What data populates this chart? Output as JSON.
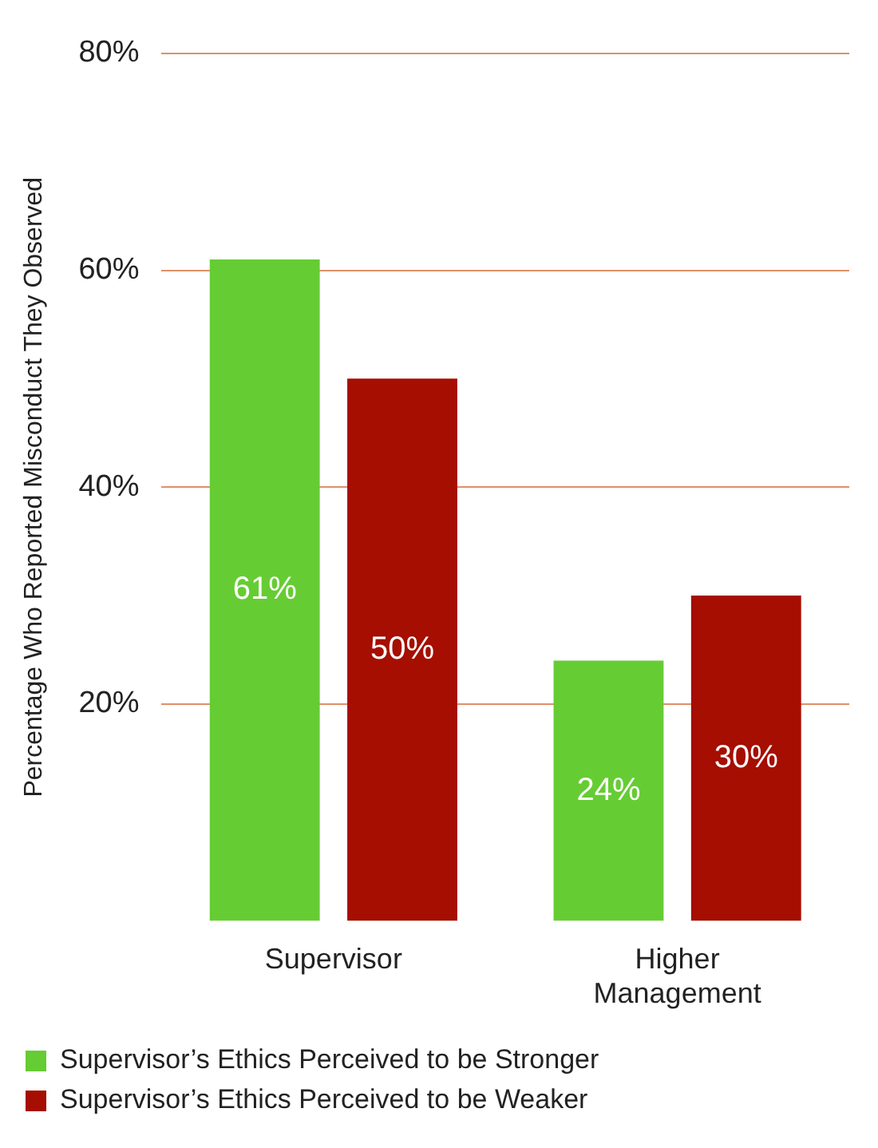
{
  "chart_data": {
    "type": "bar",
    "ylabel": "Percentage Who Reported Misconduct They Observed",
    "categories": [
      "Supervisor",
      "Higher Management"
    ],
    "series": [
      {
        "name": "Supervisor’s Ethics Perceived to be Stronger",
        "color": "#66cc33",
        "values": [
          61,
          24
        ],
        "value_labels": [
          "61%",
          "24%"
        ]
      },
      {
        "name": "Supervisor’s Ethics Perceived to be Weaker",
        "color": "#a50e00",
        "values": [
          50,
          30
        ],
        "value_labels": [
          "50%",
          "30%"
        ]
      }
    ],
    "ylim": [
      0,
      80
    ],
    "yticks": [
      {
        "value": 20,
        "label": "20%"
      },
      {
        "value": 40,
        "label": "40%"
      },
      {
        "value": 60,
        "label": "60%"
      },
      {
        "value": 80,
        "label": "80%"
      }
    ],
    "grid": "y",
    "legend": "bottom"
  }
}
